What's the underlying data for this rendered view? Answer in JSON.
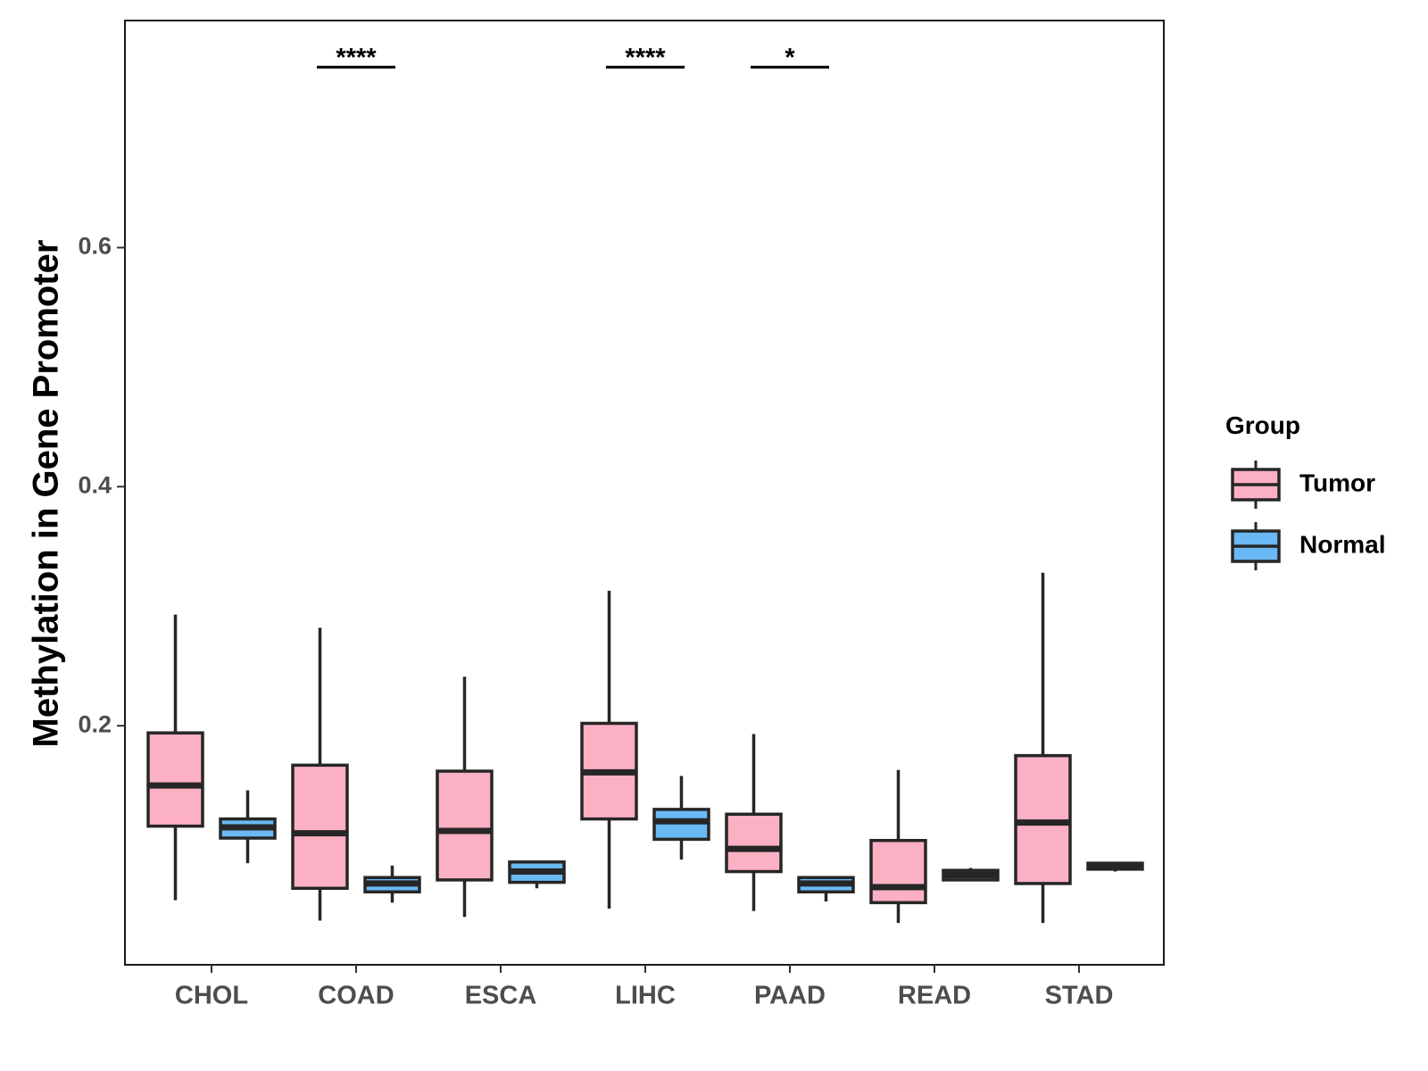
{
  "chart_data": {
    "type": "boxplot",
    "title": "",
    "xlabel": "",
    "ylabel": "Methylation in Gene Promoter",
    "ylim": [
      0.0,
      0.79
    ],
    "yticks": [
      0.2,
      0.4,
      0.6
    ],
    "ytick_labels": [
      "0.2",
      "0.4",
      "0.6"
    ],
    "categories": [
      "CHOL",
      "COAD",
      "ESCA",
      "LIHC",
      "PAAD",
      "READ",
      "STAD"
    ],
    "legend": {
      "title": "Group",
      "position": "right",
      "entries": [
        {
          "name": "Tumor",
          "color": "#fcb0c3"
        },
        {
          "name": "Normal",
          "color": "#6ab9f5"
        }
      ]
    },
    "series": [
      {
        "name": "Tumor",
        "color": "#fcb0c3",
        "boxes": [
          {
            "category": "CHOL",
            "min": 0.054,
            "q1": 0.116,
            "median": 0.15,
            "q3": 0.194,
            "max": 0.293
          },
          {
            "category": "COAD",
            "min": 0.037,
            "q1": 0.064,
            "median": 0.11,
            "q3": 0.167,
            "max": 0.282
          },
          {
            "category": "ESCA",
            "min": 0.04,
            "q1": 0.071,
            "median": 0.112,
            "q3": 0.162,
            "max": 0.241
          },
          {
            "category": "LIHC",
            "min": 0.047,
            "q1": 0.122,
            "median": 0.161,
            "q3": 0.202,
            "max": 0.313
          },
          {
            "category": "PAAD",
            "min": 0.045,
            "q1": 0.078,
            "median": 0.097,
            "q3": 0.126,
            "max": 0.193
          },
          {
            "category": "READ",
            "min": 0.035,
            "q1": 0.052,
            "median": 0.065,
            "q3": 0.104,
            "max": 0.163
          },
          {
            "category": "STAD",
            "min": 0.035,
            "q1": 0.068,
            "median": 0.119,
            "q3": 0.175,
            "max": 0.328
          }
        ]
      },
      {
        "name": "Normal",
        "color": "#6ab9f5",
        "boxes": [
          {
            "category": "CHOL",
            "min": 0.085,
            "q1": 0.106,
            "median": 0.115,
            "q3": 0.122,
            "max": 0.146
          },
          {
            "category": "COAD",
            "min": 0.052,
            "q1": 0.061,
            "median": 0.068,
            "q3": 0.073,
            "max": 0.083
          },
          {
            "category": "ESCA",
            "min": 0.064,
            "q1": 0.069,
            "median": 0.078,
            "q3": 0.086,
            "max": 0.087
          },
          {
            "category": "LIHC",
            "min": 0.088,
            "q1": 0.105,
            "median": 0.12,
            "q3": 0.13,
            "max": 0.158
          },
          {
            "category": "PAAD",
            "min": 0.053,
            "q1": 0.061,
            "median": 0.068,
            "q3": 0.073,
            "max": 0.073
          },
          {
            "category": "READ",
            "min": 0.07,
            "q1": 0.071,
            "median": 0.075,
            "q3": 0.079,
            "max": 0.081
          },
          {
            "category": "STAD",
            "min": 0.078,
            "q1": 0.08,
            "median": 0.082,
            "q3": 0.085,
            "max": 0.086
          }
        ]
      }
    ],
    "significance": [
      {
        "category": "COAD",
        "label": "****",
        "y": 0.751
      },
      {
        "category": "LIHC",
        "label": "****",
        "y": 0.751
      },
      {
        "category": "PAAD",
        "label": "*",
        "y": 0.751
      }
    ]
  }
}
